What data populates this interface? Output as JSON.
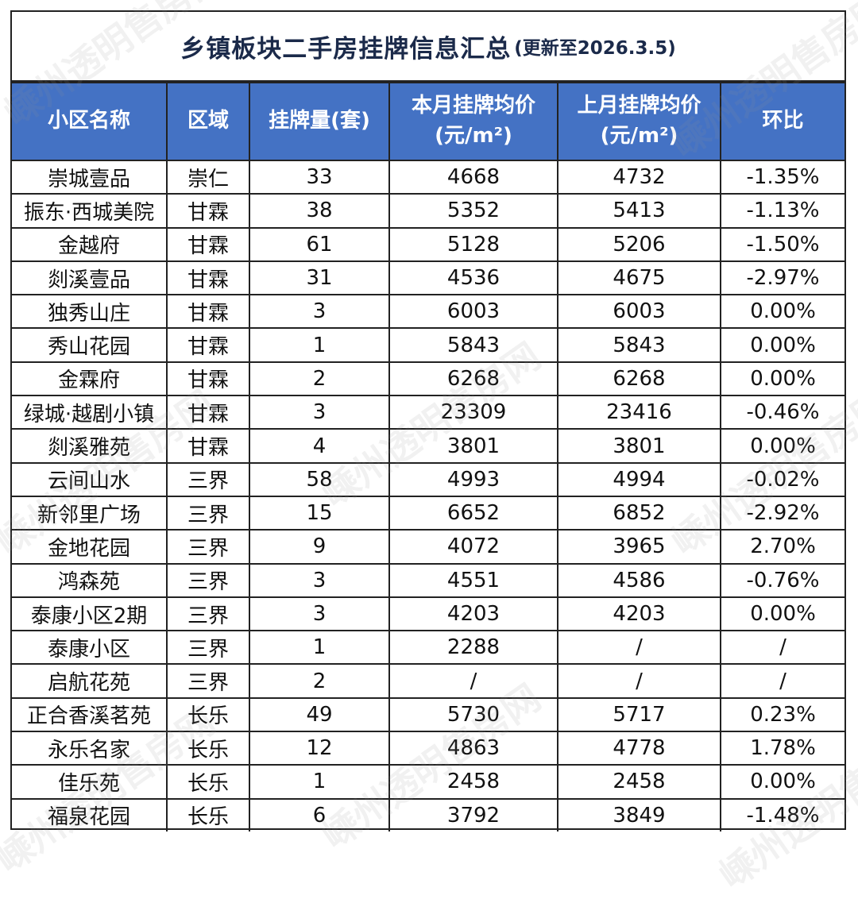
{
  "title": {
    "main": "乡镇板块二手房挂牌信息汇总",
    "sub": "(更新至2026.3.5)"
  },
  "headers": {
    "name": "小区名称",
    "area": "区域",
    "count": "挂牌量(套)",
    "cur_line1": "本月挂牌均价",
    "cur_line2": "(元/m²)",
    "prev_line1": "上月挂牌均价",
    "prev_line2": "(元/m²)",
    "change": "环比"
  },
  "rows": [
    {
      "name": "崇城壹品",
      "area": "崇仁",
      "count": "33",
      "cur": "4668",
      "prev": "4732",
      "change": "-1.35%"
    },
    {
      "name": "振东·西城美院",
      "area": "甘霖",
      "count": "38",
      "cur": "5352",
      "prev": "5413",
      "change": "-1.13%"
    },
    {
      "name": "金越府",
      "area": "甘霖",
      "count": "61",
      "cur": "5128",
      "prev": "5206",
      "change": "-1.50%"
    },
    {
      "name": "剡溪壹品",
      "area": "甘霖",
      "count": "31",
      "cur": "4536",
      "prev": "4675",
      "change": "-2.97%"
    },
    {
      "name": "独秀山庄",
      "area": "甘霖",
      "count": "3",
      "cur": "6003",
      "prev": "6003",
      "change": "0.00%"
    },
    {
      "name": "秀山花园",
      "area": "甘霖",
      "count": "1",
      "cur": "5843",
      "prev": "5843",
      "change": "0.00%"
    },
    {
      "name": "金霖府",
      "area": "甘霖",
      "count": "2",
      "cur": "6268",
      "prev": "6268",
      "change": "0.00%"
    },
    {
      "name": "绿城·越剧小镇",
      "area": "甘霖",
      "count": "3",
      "cur": "23309",
      "prev": "23416",
      "change": "-0.46%"
    },
    {
      "name": "剡溪雅苑",
      "area": "甘霖",
      "count": "4",
      "cur": "3801",
      "prev": "3801",
      "change": "0.00%"
    },
    {
      "name": "云间山水",
      "area": "三界",
      "count": "58",
      "cur": "4993",
      "prev": "4994",
      "change": "-0.02%"
    },
    {
      "name": "新邻里广场",
      "area": "三界",
      "count": "15",
      "cur": "6652",
      "prev": "6852",
      "change": "-2.92%"
    },
    {
      "name": "金地花园",
      "area": "三界",
      "count": "9",
      "cur": "4072",
      "prev": "3965",
      "change": "2.70%"
    },
    {
      "name": "鸿森苑",
      "area": "三界",
      "count": "3",
      "cur": "4551",
      "prev": "4586",
      "change": "-0.76%"
    },
    {
      "name": "泰康小区2期",
      "area": "三界",
      "count": "3",
      "cur": "4203",
      "prev": "4203",
      "change": "0.00%"
    },
    {
      "name": "泰康小区",
      "area": "三界",
      "count": "1",
      "cur": "2288",
      "prev": "/",
      "change": "/"
    },
    {
      "name": "启航花苑",
      "area": "三界",
      "count": "2",
      "cur": "/",
      "prev": "/",
      "change": "/"
    },
    {
      "name": "正合香溪茗苑",
      "area": "长乐",
      "count": "49",
      "cur": "5730",
      "prev": "5717",
      "change": "0.23%"
    },
    {
      "name": "永乐名家",
      "area": "长乐",
      "count": "12",
      "cur": "4863",
      "prev": "4778",
      "change": "1.78%"
    },
    {
      "name": "佳乐苑",
      "area": "长乐",
      "count": "1",
      "cur": "2458",
      "prev": "2458",
      "change": "0.00%"
    },
    {
      "name": "福泉花园",
      "area": "长乐",
      "count": "6",
      "cur": "3792",
      "prev": "3849",
      "change": "-1.48%"
    }
  ],
  "watermark": "嵊州透明售房网"
}
